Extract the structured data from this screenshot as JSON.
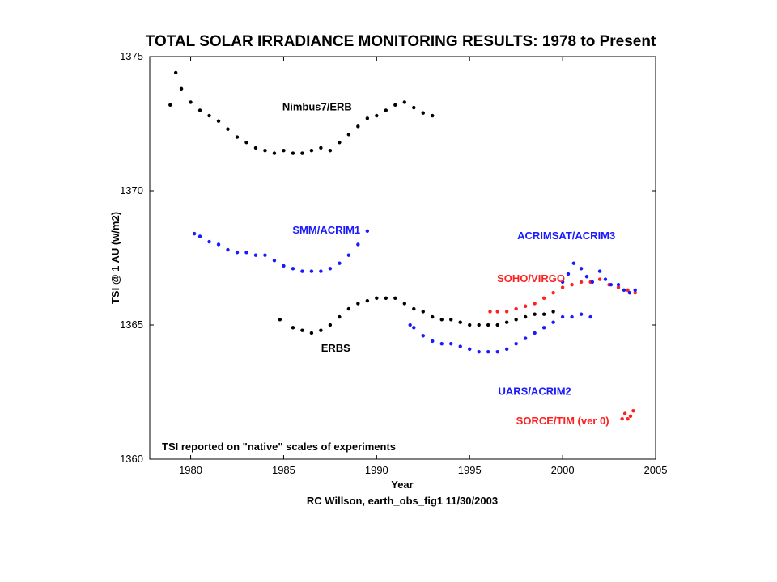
{
  "chart_data": {
    "type": "scatter",
    "title": "TOTAL SOLAR IRRADIANCE MONITORING RESULTS: 1978 to Present",
    "xlabel": "Year",
    "ylabel": "TSI @ 1 AU (w/m2)",
    "xlim": [
      1977.8,
      2005
    ],
    "ylim": [
      1360,
      1375
    ],
    "xticks": [
      1980,
      1985,
      1990,
      1995,
      2000,
      2005
    ],
    "yticks": [
      1360,
      1365,
      1370,
      1375
    ],
    "grid": false,
    "annotation": "TSI reported on \"native\" scales of experiments",
    "footer": "RC Willson, earth_obs_fig1  11/30/2003",
    "series": [
      {
        "name": "Nimbus7/ERB",
        "color": "#000000",
        "x": [
          1978.9,
          1979.2,
          1979.5,
          1980.0,
          1980.5,
          1981.0,
          1981.5,
          1982.0,
          1982.5,
          1983.0,
          1983.5,
          1984.0,
          1984.5,
          1985.0,
          1985.5,
          1986.0,
          1986.5,
          1987.0,
          1987.5,
          1988.0,
          1988.5,
          1989.0,
          1989.5,
          1990.0,
          1990.5,
          1991.0,
          1991.5,
          1992.0,
          1992.5,
          1993.0
        ],
        "y": [
          1373.2,
          1374.4,
          1373.8,
          1373.3,
          1373.0,
          1372.8,
          1372.6,
          1372.3,
          1372.0,
          1371.8,
          1371.6,
          1371.5,
          1371.4,
          1371.5,
          1371.4,
          1371.4,
          1371.5,
          1371.6,
          1371.5,
          1371.8,
          1372.1,
          1372.4,
          1372.7,
          1372.8,
          1373.0,
          1373.2,
          1373.3,
          1373.1,
          1372.9,
          1372.8
        ]
      },
      {
        "name": "SMM/ACRIM1",
        "color": "#1a1aff",
        "x": [
          1980.2,
          1980.5,
          1981.0,
          1981.5,
          1982.0,
          1982.5,
          1983.0,
          1983.5,
          1984.0,
          1984.5,
          1985.0,
          1985.5,
          1986.0,
          1986.5,
          1987.0,
          1987.5,
          1988.0,
          1988.5,
          1989.0,
          1989.5
        ],
        "y": [
          1368.4,
          1368.3,
          1368.1,
          1368.0,
          1367.8,
          1367.7,
          1367.7,
          1367.6,
          1367.6,
          1367.4,
          1367.2,
          1367.1,
          1367.0,
          1367.0,
          1367.0,
          1367.1,
          1367.3,
          1367.6,
          1368.0,
          1368.5
        ]
      },
      {
        "name": "ERBS",
        "color": "#000000",
        "x": [
          1984.8,
          1985.5,
          1986.0,
          1986.5,
          1987.0,
          1987.5,
          1988.0,
          1988.5,
          1989.0,
          1989.5,
          1990.0,
          1990.5,
          1991.0,
          1991.5,
          1992.0,
          1992.5,
          1993.0,
          1993.5,
          1994.0,
          1994.5,
          1995.0,
          1995.5,
          1996.0,
          1996.5,
          1997.0,
          1997.5,
          1998.0,
          1998.5,
          1999.0,
          1999.5
        ],
        "y": [
          1365.2,
          1364.9,
          1364.8,
          1364.7,
          1364.8,
          1365.0,
          1365.3,
          1365.6,
          1365.8,
          1365.9,
          1366.0,
          1366.0,
          1366.0,
          1365.8,
          1365.6,
          1365.5,
          1365.3,
          1365.2,
          1365.2,
          1365.1,
          1365.0,
          1365.0,
          1365.0,
          1365.0,
          1365.1,
          1365.2,
          1365.3,
          1365.4,
          1365.4,
          1365.5
        ]
      },
      {
        "name": "UARS/ACRIM2",
        "color": "#1a1aff",
        "x": [
          1991.8,
          1992.0,
          1992.5,
          1993.0,
          1993.5,
          1994.0,
          1994.5,
          1995.0,
          1995.5,
          1996.0,
          1996.5,
          1997.0,
          1997.5,
          1998.0,
          1998.5,
          1999.0,
          1999.5,
          2000.0,
          2000.5,
          2001.0,
          2001.5
        ],
        "y": [
          1365.0,
          1364.9,
          1364.6,
          1364.4,
          1364.3,
          1364.3,
          1364.2,
          1364.1,
          1364.0,
          1364.0,
          1364.0,
          1364.1,
          1364.3,
          1364.5,
          1364.7,
          1364.9,
          1365.1,
          1365.3,
          1365.3,
          1365.4,
          1365.3
        ]
      },
      {
        "name": "SOHO/VIRGO",
        "color": "#ff2020",
        "x": [
          1996.1,
          1996.5,
          1997.0,
          1997.5,
          1998.0,
          1998.5,
          1999.0,
          1999.5,
          2000.0,
          2000.5,
          2001.0,
          2001.5,
          2002.0,
          2002.5,
          2003.0,
          2003.5,
          2003.9
        ],
        "y": [
          1365.5,
          1365.5,
          1365.5,
          1365.6,
          1365.7,
          1365.8,
          1366.0,
          1366.2,
          1366.4,
          1366.5,
          1366.6,
          1366.6,
          1366.7,
          1366.5,
          1366.4,
          1366.3,
          1366.2
        ]
      },
      {
        "name": "ACRIMSAT/ACRIM3",
        "color": "#1a1aff",
        "x": [
          2000.0,
          2000.3,
          2000.6,
          2001.0,
          2001.3,
          2001.6,
          2002.0,
          2002.3,
          2002.6,
          2003.0,
          2003.3,
          2003.6,
          2003.9
        ],
        "y": [
          1366.6,
          1366.9,
          1367.3,
          1367.1,
          1366.8,
          1366.6,
          1367.0,
          1366.7,
          1366.5,
          1366.5,
          1366.3,
          1366.2,
          1366.3
        ]
      },
      {
        "name": "SORCE/TIM (ver 0)",
        "color": "#ff2020",
        "x": [
          2003.2,
          2003.35,
          2003.5,
          2003.65,
          2003.8
        ],
        "y": [
          1361.5,
          1361.7,
          1361.5,
          1361.6,
          1361.8
        ]
      }
    ]
  }
}
